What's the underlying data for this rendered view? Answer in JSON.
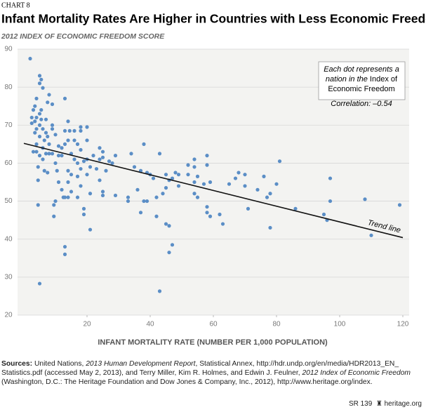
{
  "header": "CHART 8",
  "chart_data": {
    "type": "scatter",
    "title": "Infant Mortality Rates Are Higher in Countries with Less Economic Freedom",
    "y_label": "2012 INDEX OF ECONOMIC FREEDOM SCORE",
    "x_label": "INFANT MORTALITY RATE (NUMBER PER 1,000 POPULATION)",
    "color": "#5b8ec6",
    "xlim": [
      -2,
      122
    ],
    "xticks": [
      20,
      40,
      60,
      80,
      100,
      120
    ],
    "ylim": [
      20,
      90
    ],
    "yticks": [
      20,
      30,
      40,
      50,
      60,
      70,
      80,
      90
    ],
    "grid": true,
    "x": [
      2,
      2.5,
      2.5,
      3,
      3,
      3.5,
      3.5,
      3.5,
      4,
      4,
      4,
      4,
      4,
      4.5,
      4.5,
      4.5,
      5,
      5,
      5,
      5,
      5,
      5,
      5,
      5.5,
      5.5,
      5.5,
      6,
      6,
      6,
      6,
      6.5,
      6.5,
      7,
      7,
      7,
      7.5,
      7.5,
      7.5,
      8,
      8,
      8,
      9,
      9,
      9,
      9,
      9.5,
      9.5,
      10,
      10,
      10,
      10.5,
      11,
      11,
      11,
      12,
      12,
      12,
      12.5,
      13,
      13,
      13,
      13,
      13,
      13,
      14,
      14,
      14,
      14,
      14,
      14.5,
      15,
      15,
      15,
      16,
      16,
      16,
      17,
      17,
      17,
      17,
      18,
      18,
      18,
      18,
      18,
      19,
      19,
      19,
      20,
      20,
      20,
      20,
      21,
      21,
      21,
      22,
      23,
      24,
      24,
      24,
      25,
      25,
      25,
      25,
      26,
      27,
      28,
      29,
      29,
      33,
      33,
      34,
      35,
      36,
      37,
      37,
      38,
      38,
      39,
      39,
      40,
      41,
      42,
      42,
      43,
      43,
      44,
      45,
      45,
      45,
      46,
      46,
      46,
      47,
      47,
      48,
      49,
      49,
      52,
      52,
      54,
      54,
      54,
      54,
      55,
      55,
      57,
      58,
      58,
      58,
      58,
      59,
      59,
      62,
      63,
      65,
      67,
      68,
      70,
      70,
      71,
      74,
      76,
      77,
      78,
      78,
      80,
      81,
      86,
      95,
      96,
      97,
      97,
      108,
      110,
      119
    ],
    "y": [
      87.5,
      72,
      70.5,
      74,
      63,
      75,
      71,
      68,
      77,
      72,
      69,
      65,
      63,
      59,
      55.5,
      49,
      83,
      81,
      73,
      70,
      67,
      62,
      28.3,
      82,
      74,
      71.5,
      79.8,
      69,
      64,
      61,
      66,
      58,
      71.5,
      68,
      62.5,
      76,
      67,
      57.5,
      78,
      65,
      62.5,
      75.5,
      70,
      69,
      62.5,
      46,
      49,
      67.5,
      60,
      50,
      58,
      64.5,
      62,
      55,
      64,
      62,
      53,
      51,
      77,
      68.5,
      65,
      51,
      38,
      36,
      71,
      66,
      58,
      55,
      51,
      68.5,
      62.5,
      57,
      52.5,
      68.5,
      66,
      61,
      65,
      60,
      56.5,
      51,
      69.5,
      68.5,
      63.5,
      58.5,
      54,
      60.5,
      48,
      46.5,
      69.5,
      66,
      61,
      57,
      59,
      42.5,
      52,
      62,
      58.5,
      64,
      61,
      55.5,
      63,
      61.5,
      52.5,
      51.5,
      58,
      60.5,
      60,
      62,
      51.5,
      51,
      50,
      62.5,
      59,
      53,
      47,
      58,
      65,
      50,
      57.5,
      50,
      57,
      56,
      46,
      51,
      62.5,
      26.3,
      52,
      44,
      53.5,
      57,
      36.5,
      43.5,
      55.5,
      56,
      38.5,
      57.5,
      57,
      54,
      59.5,
      57,
      61,
      59,
      55,
      52,
      56.5,
      51,
      54.5,
      62,
      59.5,
      48.5,
      47,
      55,
      46,
      46.5,
      44,
      54.5,
      56,
      57.5,
      57,
      54,
      48,
      53,
      56.5,
      51,
      52,
      43,
      54.5,
      60.5,
      48,
      46.5,
      45,
      56,
      50,
      50.5,
      41,
      49
    ],
    "trend_line": {
      "label": "Trend line",
      "x": [
        0,
        120
      ],
      "y": [
        65.2,
        40.4
      ]
    },
    "note": [
      "Each dot represents a",
      "nation in the",
      "Index of",
      "Economic Freedom"
    ],
    "correlation": "Correlation: –0.54"
  },
  "sources": [
    "Sources:",
    " United Nations, ",
    "2013 Human Development Report",
    ", Statistical Annex, http://hdr.undp.org/en/media/HDR2013_EN_ Statistics.pdf (accessed May 2, 2013), and Terry Miller, Kim R. Holmes, and Edwin J. Feulner, ",
    "2012 Index of Economic Freedom",
    " (Washington, D.C.: The Heritage Foundation and Dow Jones & Company, Inc., 2012), http://www.heritage.org/index."
  ],
  "footer": {
    "report": "SR 139",
    "site": "heritage.org"
  }
}
